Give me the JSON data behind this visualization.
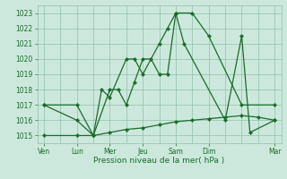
{
  "background_color": "#cce8dc",
  "grid_color": "#8fbfaa",
  "line_color": "#1a6b2a",
  "title": "Pression niveau de la mer( hPa )",
  "xlabels_major": [
    "Ven",
    "Lun",
    "Mer",
    "Jeu",
    "Sam",
    "Dim",
    "Mar"
  ],
  "xlabels_major_pos": [
    0,
    2,
    4,
    6,
    8,
    10,
    14
  ],
  "all_minor_x": [
    0,
    1,
    2,
    3,
    4,
    5,
    6,
    7,
    8,
    9,
    10,
    11,
    12,
    13,
    14
  ],
  "line1_x": [
    0,
    2,
    3,
    4,
    4.5,
    5,
    5.5,
    6,
    6.5,
    7,
    7.5,
    8,
    9,
    10,
    12,
    14
  ],
  "line1_y": [
    1017,
    1017,
    1015,
    1018,
    1018,
    1017,
    1018.5,
    1020,
    1020,
    1019,
    1019,
    1023,
    1023,
    1021.5,
    1017,
    1017
  ],
  "line2_x": [
    0,
    2,
    3,
    3.5,
    4,
    5,
    5.5,
    6,
    7,
    7.5,
    8,
    8.5,
    11,
    12,
    12.5,
    14
  ],
  "line2_y": [
    1017,
    1016,
    1015,
    1018,
    1017.5,
    1020,
    1020,
    1019,
    1021,
    1022,
    1023,
    1021,
    1016,
    1021.5,
    1015.2,
    1016
  ],
  "line3_x": [
    0,
    2,
    3,
    4,
    5,
    6,
    7,
    8,
    9,
    10,
    11,
    12,
    13,
    14
  ],
  "line3_y": [
    1015,
    1015,
    1015,
    1015.2,
    1015.4,
    1015.5,
    1015.7,
    1015.9,
    1016.0,
    1016.1,
    1016.2,
    1016.3,
    1016.2,
    1016.0
  ],
  "xlim": [
    -0.4,
    14.4
  ],
  "ylim": [
    1014.5,
    1023.5
  ],
  "yticks": [
    1015,
    1016,
    1017,
    1018,
    1019,
    1020,
    1021,
    1022,
    1023
  ]
}
